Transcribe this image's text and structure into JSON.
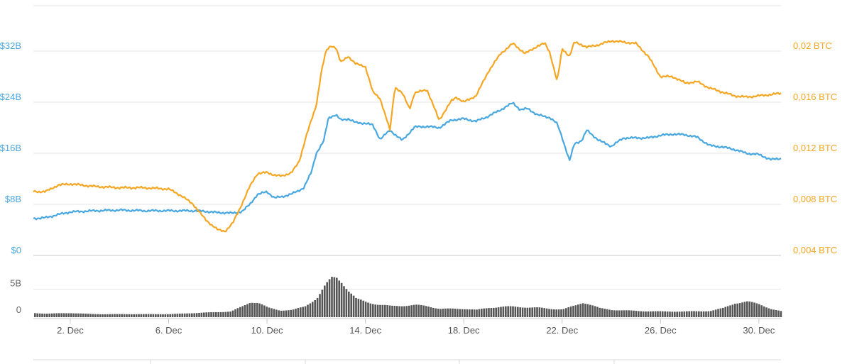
{
  "chart_data": {
    "type": "line",
    "x_ticks": [
      "2. Dec",
      "6. Dec",
      "10. Dec",
      "14. Dec",
      "18. Dec",
      "22. Dec",
      "26. Dec",
      "30. Dec"
    ],
    "x_range": [
      0.5,
      30.9
    ],
    "left_axis": {
      "ticks": [
        "$0",
        "$8B",
        "$16B",
        "$24B",
        "$32B"
      ],
      "tick_values": [
        0,
        8,
        16,
        24,
        32
      ],
      "range": [
        0,
        40
      ],
      "color": "#4aa8e0"
    },
    "right_axis": {
      "ticks": [
        "0,004 BTC",
        "0,008 BTC",
        "0,012 BTC",
        "0,016 BTC",
        "0,02 BTC"
      ],
      "tick_values": [
        0.004,
        0.008,
        0.012,
        0.016,
        0.02
      ],
      "range": [
        0.004,
        0.024
      ],
      "color": "#f5a623"
    },
    "volume_axis": {
      "ticks": [
        "0",
        "5B"
      ],
      "tick_values": [
        0,
        5
      ],
      "range": [
        0,
        10
      ]
    },
    "series": [
      {
        "axis": "left",
        "color": "#4aa8e0",
        "x": [
          0.5,
          1,
          1.5,
          2,
          3,
          4,
          5,
          6,
          7,
          7.5,
          8,
          8.3,
          8.6,
          9,
          9.3,
          9.6,
          10,
          10.3,
          10.6,
          11,
          11.5,
          11.8,
          12,
          12.3,
          12.5,
          12.8,
          13,
          13.3,
          13.6,
          14,
          14.3,
          14.6,
          15,
          15.5,
          16,
          16.5,
          17,
          17.5,
          18,
          18.5,
          19,
          19.5,
          20,
          20.3,
          20.6,
          21,
          21.5,
          21.8,
          22,
          22.3,
          22.5,
          22.8,
          23,
          23.5,
          24,
          24.5,
          25,
          25.5,
          26,
          26.5,
          27,
          27.5,
          28,
          28.5,
          29,
          29.5,
          30,
          30.5,
          30.9
        ],
        "values": [
          5.8,
          5.9,
          6.4,
          6.8,
          7.0,
          7.1,
          7.0,
          7.0,
          7.0,
          6.9,
          6.7,
          6.7,
          6.6,
          6.9,
          8.0,
          9.5,
          10.0,
          9.0,
          9.2,
          9.6,
          10.6,
          13.0,
          16.0,
          17.8,
          21.6,
          22.0,
          21.2,
          21.4,
          20.8,
          20.7,
          20.4,
          18.2,
          19.6,
          18.0,
          20.1,
          20.2,
          20.0,
          21.2,
          21.4,
          21.0,
          21.8,
          22.8,
          23.9,
          22.8,
          23.0,
          22.0,
          21.6,
          20.6,
          18.5,
          14.8,
          17.5,
          18.0,
          19.6,
          18.0,
          17.1,
          18.4,
          18.4,
          18.4,
          18.8,
          19.0,
          18.9,
          18.5,
          17.2,
          17.0,
          16.6,
          16.0,
          15.8,
          15.0,
          15.2
        ]
      },
      {
        "axis": "right",
        "color": "#f5a623",
        "x": [
          0.5,
          1,
          1.5,
          2,
          3,
          4,
          5,
          6,
          6.5,
          7,
          7.5,
          8,
          8.3,
          8.6,
          9,
          9.3,
          9.6,
          10,
          10.3,
          10.6,
          11,
          11.3,
          11.6,
          12,
          12.2,
          12.4,
          12.6,
          12.8,
          13,
          13.3,
          13.6,
          14,
          14.3,
          14.6,
          15,
          15.2,
          15.5,
          15.8,
          16,
          16.5,
          17,
          17.5,
          17.7,
          18,
          18.5,
          19,
          19.5,
          20,
          20.5,
          21,
          21.3,
          21.5,
          21.8,
          22,
          22.3,
          22.5,
          22.8,
          23,
          23.5,
          24,
          24.5,
          25,
          25.5,
          26,
          26.5,
          27,
          27.5,
          28,
          28.5,
          29,
          29.5,
          30,
          30.5,
          30.9
        ],
        "values": [
          0.009,
          0.009,
          0.0095,
          0.0096,
          0.0094,
          0.0093,
          0.0093,
          0.0092,
          0.0087,
          0.008,
          0.0068,
          0.006,
          0.0059,
          0.0065,
          0.0081,
          0.0094,
          0.0104,
          0.0105,
          0.0103,
          0.0102,
          0.0105,
          0.0113,
          0.0134,
          0.0157,
          0.0183,
          0.02,
          0.0204,
          0.0203,
          0.0191,
          0.0196,
          0.019,
          0.0188,
          0.0168,
          0.0163,
          0.0138,
          0.0172,
          0.0167,
          0.0155,
          0.0167,
          0.017,
          0.0146,
          0.0161,
          0.0164,
          0.016,
          0.0165,
          0.0184,
          0.0198,
          0.0206,
          0.0198,
          0.0204,
          0.0206,
          0.0199,
          0.0176,
          0.0202,
          0.0196,
          0.0207,
          0.0205,
          0.0203,
          0.0205,
          0.0208,
          0.0207,
          0.0206,
          0.0196,
          0.018,
          0.018,
          0.0175,
          0.0176,
          0.0171,
          0.0168,
          0.0165,
          0.0164,
          0.0165,
          0.0166,
          0.0167
        ]
      }
    ],
    "volume_series": {
      "color": "#555555",
      "x": [
        0.5,
        1,
        2,
        3,
        4,
        5,
        6,
        7,
        8,
        8.5,
        9,
        9.3,
        9.6,
        10,
        10.5,
        11,
        11.5,
        12,
        12.3,
        12.6,
        12.8,
        13,
        13.3,
        13.6,
        14,
        14.5,
        15,
        15.5,
        16,
        16.5,
        17,
        17.5,
        18,
        18.5,
        19,
        19.5,
        20,
        20.5,
        21,
        21.5,
        22,
        22.5,
        22.8,
        23,
        23.5,
        24,
        24.5,
        25,
        26,
        27,
        28,
        28.5,
        29,
        29.5,
        30,
        30.5,
        30.9
      ],
      "values": [
        0.5,
        0.4,
        0.5,
        0.3,
        0.3,
        0.3,
        0.3,
        0.5,
        0.7,
        0.8,
        1.8,
        2.6,
        2.5,
        1.5,
        1.0,
        1.1,
        1.7,
        3.4,
        5.4,
        7.0,
        7.2,
        6.5,
        4.6,
        3.1,
        2.6,
        2.1,
        1.8,
        1.9,
        2.0,
        1.8,
        1.3,
        1.3,
        1.3,
        1.1,
        1.5,
        1.7,
        1.7,
        1.6,
        1.5,
        1.3,
        1.2,
        1.9,
        2.5,
        2.3,
        1.4,
        1.1,
        1.0,
        0.9,
        0.8,
        0.8,
        0.9,
        1.4,
        2.4,
        2.6,
        2.2,
        1.2,
        0.8
      ]
    },
    "legend": "none",
    "grid": "horizontal"
  }
}
